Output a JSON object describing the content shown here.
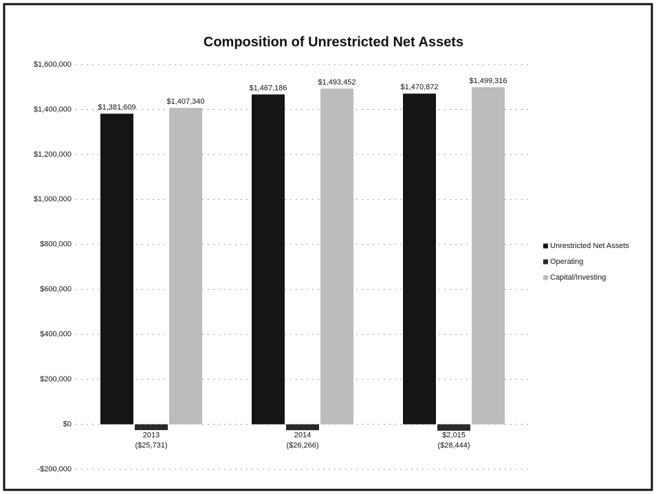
{
  "chart_data": {
    "type": "bar",
    "title": "Composition of Unrestricted Net Assets",
    "categories": [
      "2013",
      "2014",
      "$2,015"
    ],
    "series": [
      {
        "name": "Unrestricted Net Assets",
        "color": "#151515",
        "values": [
          1381609,
          1467186,
          1470872
        ],
        "value_labels": [
          "$1,381,609",
          "$1,467,186",
          "$1,470,872"
        ]
      },
      {
        "name": "Operating",
        "color": "#2a2a2a",
        "values": [
          -25731,
          -26266,
          -28444
        ],
        "value_labels": [
          "($25,731)",
          "($26,266)",
          "($28,444)"
        ]
      },
      {
        "name": "Capital/Investing",
        "color": "#bcbcbc",
        "values": [
          1407340,
          1493452,
          1499316
        ],
        "value_labels": [
          "$1,407,340",
          "$1,493,452",
          "$1,499,316"
        ]
      }
    ],
    "ylim": [
      -200000,
      1600000
    ],
    "yticks": [
      {
        "value": -200000,
        "label": "-$200,000"
      },
      {
        "value": 0,
        "label": "$0"
      },
      {
        "value": 200000,
        "label": "$200,000"
      },
      {
        "value": 400000,
        "label": "$400,000"
      },
      {
        "value": 600000,
        "label": "$600,000"
      },
      {
        "value": 800000,
        "label": "$800,000"
      },
      {
        "value": 1000000,
        "label": "$1,000,000"
      },
      {
        "value": 1200000,
        "label": "$1,200,000"
      },
      {
        "value": 1400000,
        "label": "$1,400,000"
      },
      {
        "value": 1600000,
        "label": "$1,600,000"
      }
    ],
    "grid": true,
    "legend": "right"
  }
}
